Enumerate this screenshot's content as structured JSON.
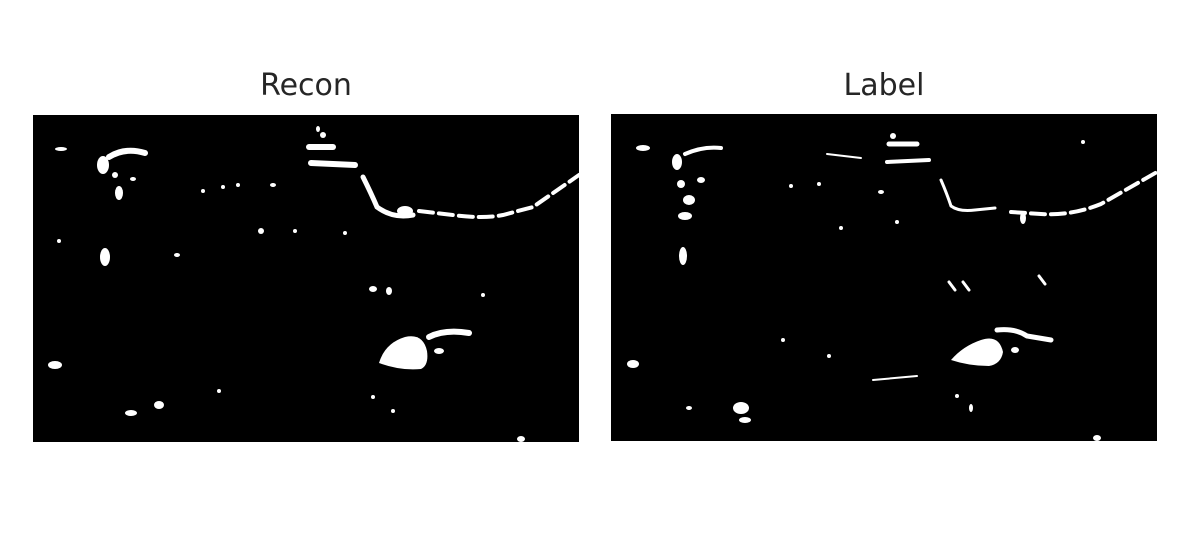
{
  "panels": {
    "recon": {
      "title": "Recon"
    },
    "label": {
      "title": "Label"
    }
  },
  "colors": {
    "background": "#000000",
    "foreground": "#ffffff",
    "title": "#262626"
  }
}
